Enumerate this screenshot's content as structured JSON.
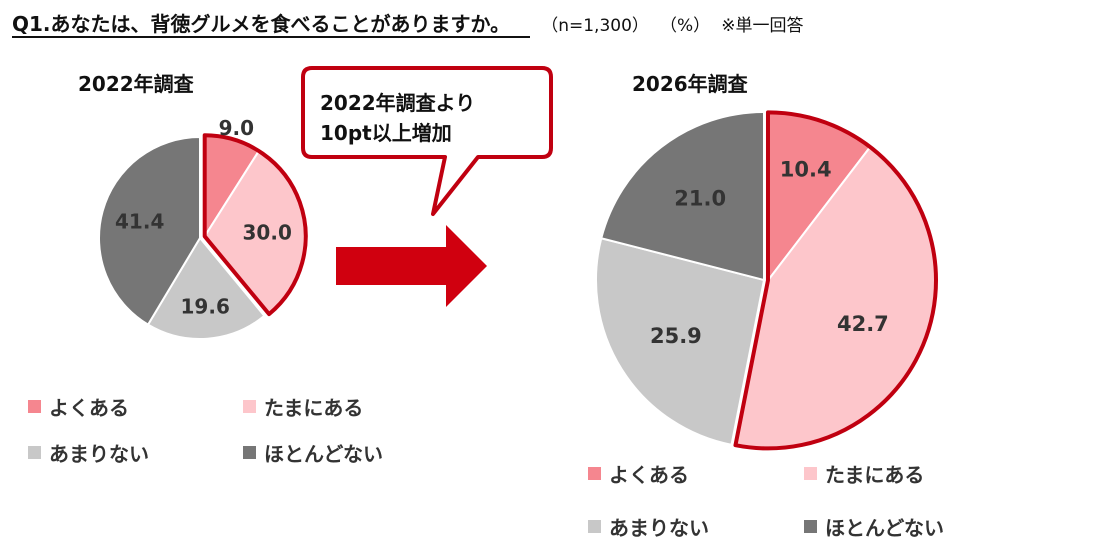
{
  "header": {
    "question": "Q1.あなたは、背徳グルメを食べることがありますか。",
    "sample": "（n=1,300）",
    "unit": "（%）",
    "note": "※単一回答"
  },
  "callout": {
    "line1": "2022年調査より",
    "line2": "10pt以上増加"
  },
  "legend_labels": [
    "よくある",
    "たまにある",
    "あまりない",
    "ほとんどない"
  ],
  "colors": {
    "accent": "#c00010",
    "arrow": "#d0000f",
    "よくある": "#f5868f",
    "たまにある": "#fdc6cb",
    "あまりない": "#c8c8c8",
    "ほとんどない": "#767676"
  },
  "chart_data": [
    {
      "type": "pie",
      "title": "2022年調査",
      "categories": [
        "よくある",
        "たまにある",
        "あまりない",
        "ほとんどない"
      ],
      "values": [
        9.0,
        30.0,
        19.6,
        41.4
      ],
      "value_labels": [
        "9.0",
        "30.0",
        "19.6",
        "41.4"
      ],
      "highlighted": [
        "よくある",
        "たまにある"
      ],
      "legend": "bottom"
    },
    {
      "type": "pie",
      "title": "2026年調査",
      "categories": [
        "よくある",
        "たまにある",
        "あまりない",
        "ほとんどない"
      ],
      "values": [
        10.4,
        42.7,
        25.9,
        21.0
      ],
      "value_labels": [
        "10.4",
        "42.7",
        "25.9",
        "21.0"
      ],
      "highlighted": [
        "よくある",
        "たまにある"
      ],
      "legend": "bottom"
    }
  ]
}
